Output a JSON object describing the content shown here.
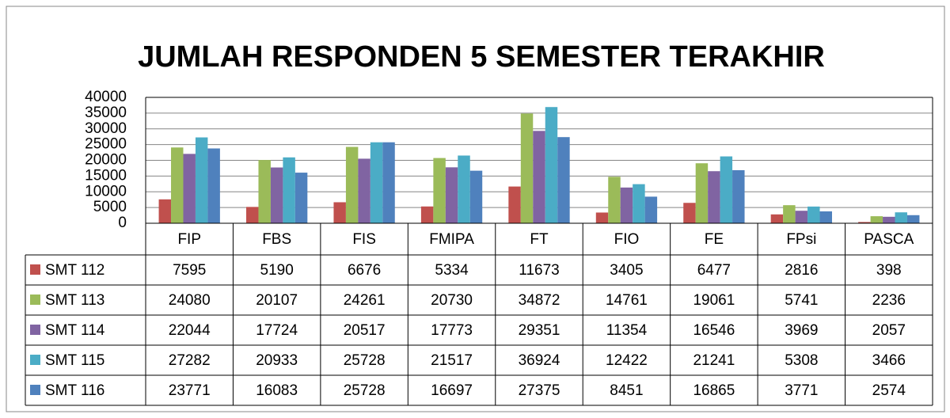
{
  "chart_data": {
    "type": "bar",
    "title": "JUMLAH RESPONDEN 5 SEMESTER TERAKHIR",
    "categories": [
      "FIP",
      "FBS",
      "FIS",
      "FMIPA",
      "FT",
      "FIO",
      "FE",
      "FPsi",
      "PASCA"
    ],
    "series": [
      {
        "name": "SMT 112",
        "color": "#c0504d",
        "values": [
          7595,
          5190,
          6676,
          5334,
          11673,
          3405,
          6477,
          2816,
          398
        ]
      },
      {
        "name": "SMT 113",
        "color": "#9bbb59",
        "values": [
          24080,
          20107,
          24261,
          20730,
          34872,
          14761,
          19061,
          5741,
          2236
        ]
      },
      {
        "name": "SMT 114",
        "color": "#8064a2",
        "values": [
          22044,
          17724,
          20517,
          17773,
          29351,
          11354,
          16546,
          3969,
          2057
        ]
      },
      {
        "name": "SMT 115",
        "color": "#4bacc6",
        "values": [
          27282,
          20933,
          25728,
          21517,
          36924,
          12422,
          21241,
          5308,
          3466
        ]
      },
      {
        "name": "SMT 116",
        "color": "#4f81bd",
        "values": [
          23771,
          16083,
          25728,
          16697,
          27375,
          8451,
          16865,
          3771,
          2574
        ]
      }
    ],
    "ylim": [
      0,
      40000
    ],
    "yticks": [
      0,
      5000,
      10000,
      15000,
      20000,
      25000,
      30000,
      35000,
      40000
    ],
    "grid": true
  }
}
